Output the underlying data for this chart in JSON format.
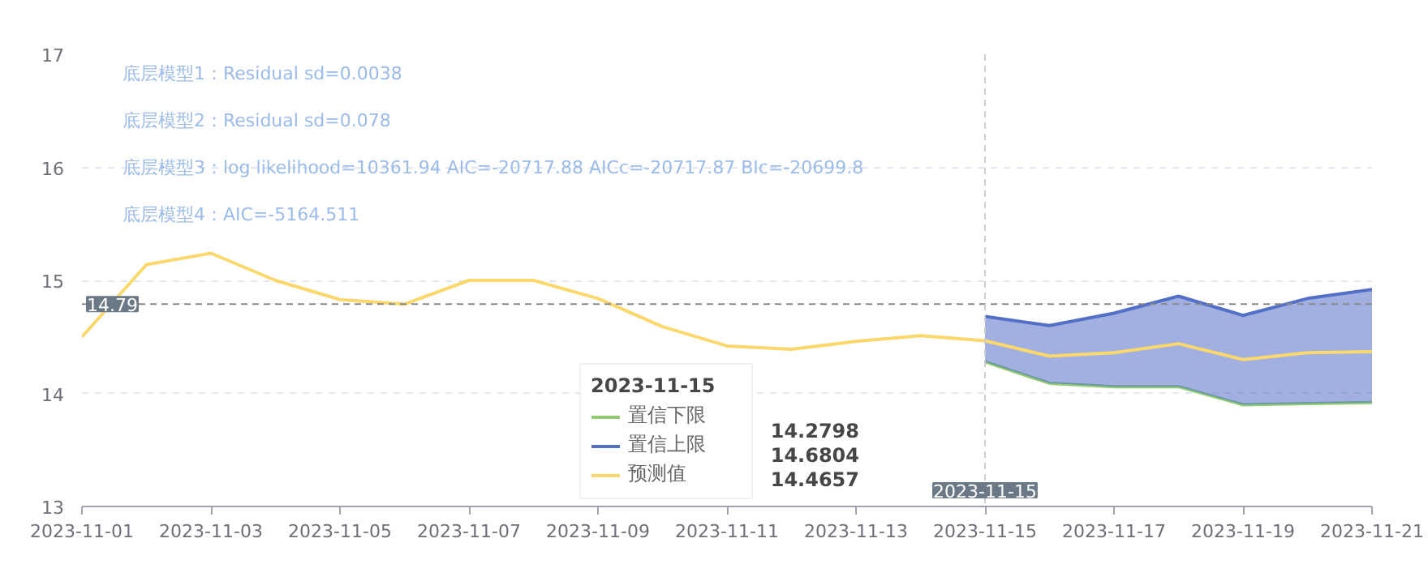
{
  "chart_data": {
    "type": "line",
    "x": [
      "2023-11-01",
      "2023-11-02",
      "2023-11-03",
      "2023-11-04",
      "2023-11-05",
      "2023-11-06",
      "2023-11-07",
      "2023-11-08",
      "2023-11-09",
      "2023-11-10",
      "2023-11-11",
      "2023-11-12",
      "2023-11-13",
      "2023-11-14",
      "2023-11-15",
      "2023-11-16",
      "2023-11-17",
      "2023-11-18",
      "2023-11-19",
      "2023-11-20",
      "2023-11-21"
    ],
    "series": [
      {
        "name": "置信下限",
        "color": "#91cc75",
        "x": [
          "2023-11-15",
          "2023-11-16",
          "2023-11-17",
          "2023-11-18",
          "2023-11-19",
          "2023-11-20",
          "2023-11-21"
        ],
        "values": [
          14.2798,
          14.09,
          14.06,
          14.06,
          13.9,
          13.91,
          13.92
        ]
      },
      {
        "name": "置信上限",
        "color": "#5470c6",
        "type": "area",
        "x": [
          "2023-11-15",
          "2023-11-16",
          "2023-11-17",
          "2023-11-18",
          "2023-11-19",
          "2023-11-20",
          "2023-11-21"
        ],
        "values": [
          14.6804,
          14.6,
          14.71,
          14.86,
          14.69,
          14.84,
          14.92
        ]
      },
      {
        "name": "预测值",
        "color": "#fad86e",
        "values": [
          14.5,
          15.14,
          15.24,
          15.0,
          14.83,
          14.79,
          15.0,
          15.0,
          14.84,
          14.59,
          14.42,
          14.39,
          14.46,
          14.51,
          14.4657,
          14.33,
          14.36,
          14.44,
          14.3,
          14.36,
          14.37
        ]
      }
    ],
    "xlim": [
      "2023-11-01",
      "2023-11-21"
    ],
    "xticks": [
      "2023-11-01",
      "2023-11-03",
      "2023-11-05",
      "2023-11-07",
      "2023-11-09",
      "2023-11-11",
      "2023-11-13",
      "2023-11-15",
      "2023-11-17",
      "2023-11-19",
      "2023-11-21"
    ],
    "ylim": [
      13,
      17
    ],
    "yticks": [
      13,
      14,
      15,
      16,
      17
    ],
    "grid": "y",
    "legend": "bottom",
    "line_style": "solid",
    "legend_title": "2023-11-15",
    "ref_lines": [
      {
        "axis": "y",
        "value": 14.79,
        "label": "14.79",
        "color": "#888888",
        "line_style": "dashed"
      },
      {
        "axis": "x",
        "value": "2023-11-15",
        "label": "2023-11-15",
        "color": "#cccccc",
        "line_style": "dashed"
      }
    ],
    "annotations": [
      "底层模型1：Residual sd=0.0038",
      "底层模型2：Residual sd=0.078",
      "底层模型3：log likelihood=10361.94 AIC=-20717.88 AICc=-20717.87 BIc=-20699.8",
      "底层模型4：AIC=-5164.511",
      "14.2798",
      "14.6804",
      "14.4657"
    ]
  }
}
